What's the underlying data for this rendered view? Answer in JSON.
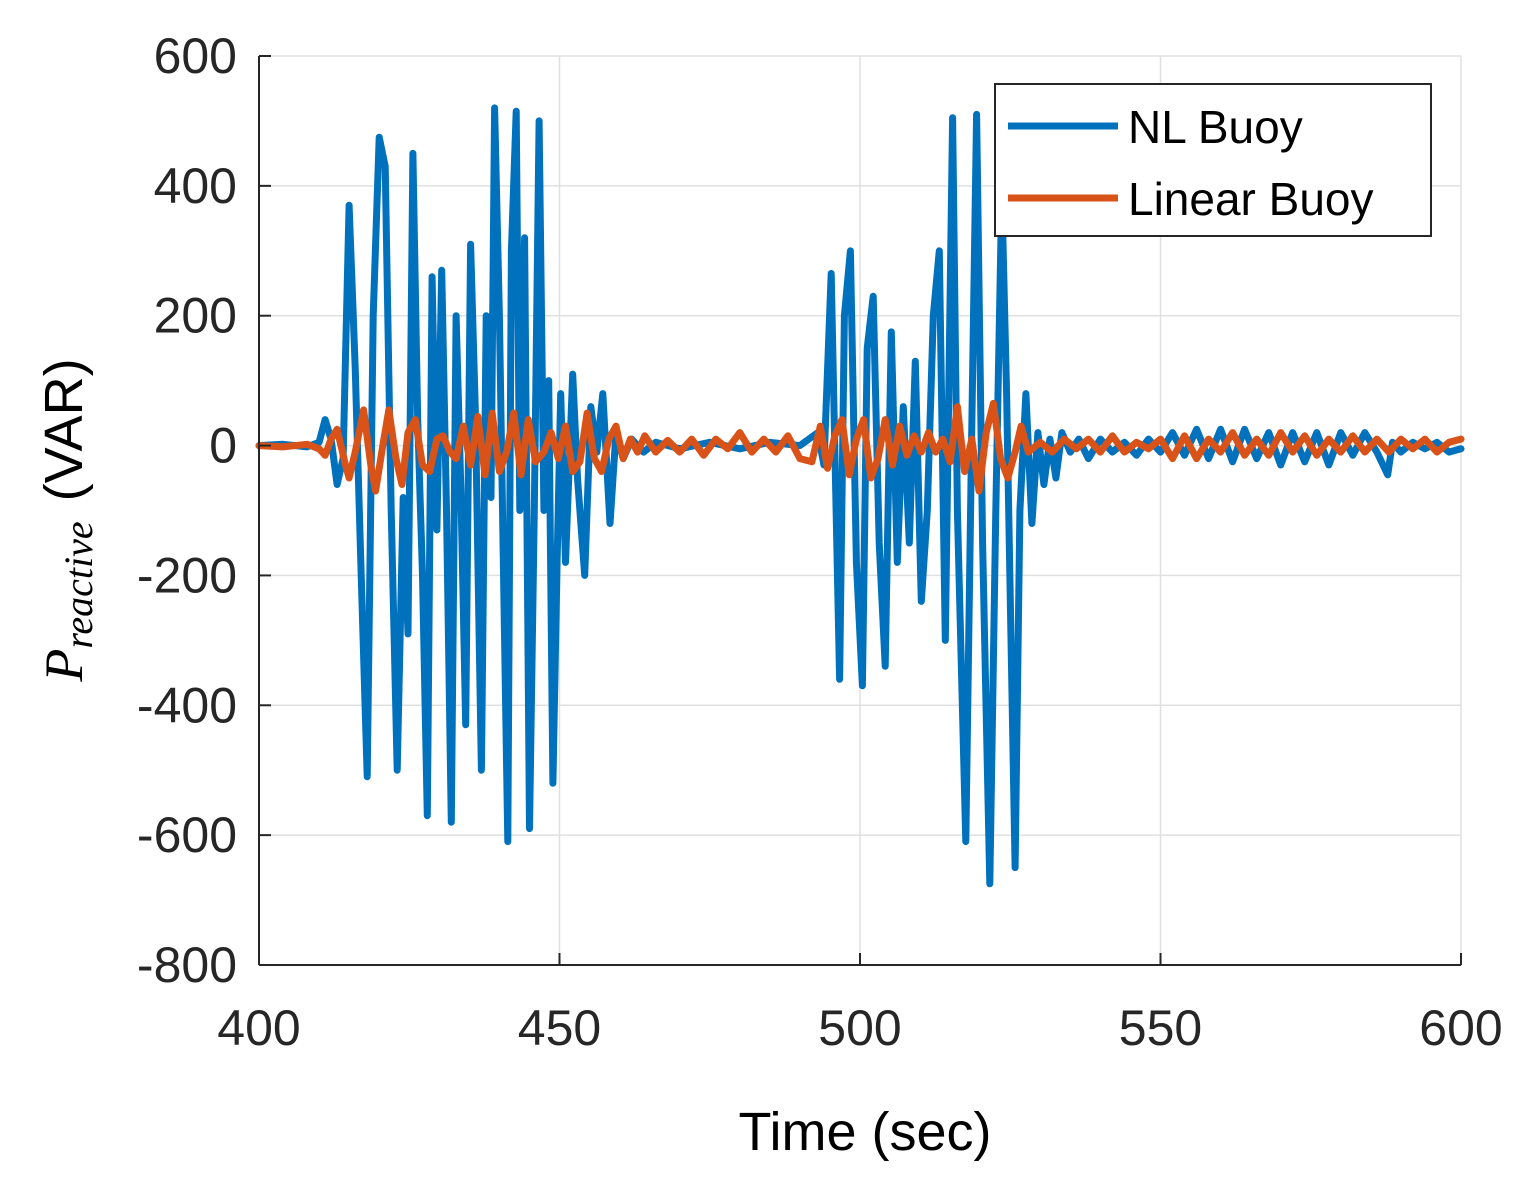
{
  "chart_data": {
    "type": "line",
    "xlabel": "Time (sec)",
    "ylabel": {
      "main": "P",
      "sub": "reactive",
      "unit": "(VAR)"
    },
    "xlim": [
      400,
      600
    ],
    "ylim": [
      -800,
      600
    ],
    "xticks": [
      400,
      450,
      500,
      550,
      600
    ],
    "yticks": [
      600,
      400,
      200,
      0,
      -200,
      -400,
      -600,
      -800
    ],
    "grid": true,
    "legend_position": "top-right",
    "series": [
      {
        "name": "NL Buoy",
        "color": "#0072BD",
        "points": [
          [
            400,
            0
          ],
          [
            404,
            2
          ],
          [
            408,
            -2
          ],
          [
            410,
            5
          ],
          [
            411,
            40
          ],
          [
            412,
            10
          ],
          [
            413,
            -60
          ],
          [
            414,
            -20
          ],
          [
            415,
            370
          ],
          [
            416,
            120
          ],
          [
            417,
            -200
          ],
          [
            418,
            -510
          ],
          [
            419,
            200
          ],
          [
            420,
            475
          ],
          [
            421,
            430
          ],
          [
            422,
            -100
          ],
          [
            423,
            -500
          ],
          [
            424,
            -80
          ],
          [
            424.8,
            -290
          ],
          [
            425.6,
            450
          ],
          [
            426.4,
            40
          ],
          [
            427.2,
            -200
          ],
          [
            428,
            -570
          ],
          [
            428.8,
            260
          ],
          [
            429.6,
            -130
          ],
          [
            430.4,
            270
          ],
          [
            431.2,
            -100
          ],
          [
            432,
            -580
          ],
          [
            432.8,
            200
          ],
          [
            433.6,
            -70
          ],
          [
            434.4,
            -430
          ],
          [
            435.2,
            310
          ],
          [
            436,
            50
          ],
          [
            437,
            -500
          ],
          [
            437.8,
            200
          ],
          [
            438.6,
            -80
          ],
          [
            439.2,
            520
          ],
          [
            440,
            200
          ],
          [
            441.4,
            -610
          ],
          [
            442,
            300
          ],
          [
            442.8,
            515
          ],
          [
            443.4,
            -100
          ],
          [
            444.2,
            320
          ],
          [
            445,
            -590
          ],
          [
            445.8,
            -100
          ],
          [
            446.6,
            500
          ],
          [
            447.4,
            -100
          ],
          [
            448.2,
            100
          ],
          [
            448.9,
            -520
          ],
          [
            449.6,
            -180
          ],
          [
            450.2,
            80
          ],
          [
            451,
            -180
          ],
          [
            452.2,
            110
          ],
          [
            453,
            -50
          ],
          [
            454.2,
            -200
          ],
          [
            455.2,
            60
          ],
          [
            456.2,
            -10
          ],
          [
            457.2,
            80
          ],
          [
            458.4,
            -120
          ],
          [
            459.4,
            20
          ],
          [
            460.6,
            -20
          ],
          [
            462,
            10
          ],
          [
            464,
            -10
          ],
          [
            466,
            5
          ],
          [
            470,
            -5
          ],
          [
            475,
            5
          ],
          [
            480,
            -5
          ],
          [
            485,
            5
          ],
          [
            490,
            0
          ],
          [
            493,
            20
          ],
          [
            494,
            -30
          ],
          [
            495.2,
            265
          ],
          [
            496.6,
            -360
          ],
          [
            497.4,
            200
          ],
          [
            498.4,
            300
          ],
          [
            499.4,
            -180
          ],
          [
            500.4,
            -370
          ],
          [
            501.2,
            150
          ],
          [
            502.2,
            230
          ],
          [
            503.2,
            -150
          ],
          [
            504.2,
            -340
          ],
          [
            505.2,
            175
          ],
          [
            506.2,
            -180
          ],
          [
            507.2,
            60
          ],
          [
            508.2,
            -150
          ],
          [
            509.2,
            130
          ],
          [
            510.2,
            -240
          ],
          [
            511.2,
            -100
          ],
          [
            512.2,
            200
          ],
          [
            513.2,
            300
          ],
          [
            514.2,
            -300
          ],
          [
            515.4,
            505
          ],
          [
            516.2,
            -100
          ],
          [
            517.6,
            -610
          ],
          [
            518.6,
            30
          ],
          [
            519.4,
            510
          ],
          [
            520.4,
            -150
          ],
          [
            521.6,
            -675
          ],
          [
            522.6,
            -100
          ],
          [
            523.6,
            390
          ],
          [
            524.4,
            80
          ],
          [
            525.8,
            -650
          ],
          [
            526.6,
            -100
          ],
          [
            527.6,
            80
          ],
          [
            528.6,
            -120
          ],
          [
            529.6,
            20
          ],
          [
            530.6,
            -60
          ],
          [
            531.6,
            10
          ],
          [
            532.6,
            -50
          ],
          [
            533.6,
            20
          ],
          [
            535,
            -10
          ],
          [
            536.4,
            10
          ],
          [
            538,
            -20
          ],
          [
            540,
            10
          ],
          [
            542,
            -10
          ],
          [
            544,
            5
          ],
          [
            546,
            -15
          ],
          [
            548,
            10
          ],
          [
            550,
            -10
          ],
          [
            552,
            20
          ],
          [
            554,
            -15
          ],
          [
            556,
            25
          ],
          [
            558,
            -20
          ],
          [
            560,
            25
          ],
          [
            562,
            -25
          ],
          [
            564,
            25
          ],
          [
            566,
            -20
          ],
          [
            568,
            20
          ],
          [
            570,
            -30
          ],
          [
            572,
            20
          ],
          [
            574,
            -25
          ],
          [
            576,
            20
          ],
          [
            578,
            -30
          ],
          [
            580,
            20
          ],
          [
            582,
            -15
          ],
          [
            584,
            20
          ],
          [
            586,
            -10
          ],
          [
            587.8,
            -45
          ],
          [
            588.6,
            5
          ],
          [
            590,
            -10
          ],
          [
            592,
            5
          ],
          [
            594,
            -5
          ],
          [
            596,
            5
          ],
          [
            598,
            -10
          ],
          [
            600,
            -5
          ]
        ]
      },
      {
        "name": "Linear Buoy",
        "color": "#D95319",
        "points": [
          [
            400,
            0
          ],
          [
            404,
            -2
          ],
          [
            408,
            2
          ],
          [
            410,
            -5
          ],
          [
            411,
            -15
          ],
          [
            412,
            10
          ],
          [
            413,
            25
          ],
          [
            414.4,
            -30
          ],
          [
            415,
            -50
          ],
          [
            416,
            -10
          ],
          [
            417.4,
            55
          ],
          [
            418.6,
            -30
          ],
          [
            419.4,
            -70
          ],
          [
            420.6,
            0
          ],
          [
            421.6,
            55
          ],
          [
            422.8,
            -20
          ],
          [
            423.8,
            -60
          ],
          [
            424.8,
            20
          ],
          [
            426,
            40
          ],
          [
            427.2,
            -30
          ],
          [
            428.4,
            -40
          ],
          [
            429.6,
            10
          ],
          [
            430.6,
            15
          ],
          [
            431.8,
            -10
          ],
          [
            432.8,
            -20
          ],
          [
            434,
            30
          ],
          [
            435.2,
            -30
          ],
          [
            436.4,
            45
          ],
          [
            437.6,
            -45
          ],
          [
            438.8,
            50
          ],
          [
            440,
            -40
          ],
          [
            441.2,
            -10
          ],
          [
            442.4,
            50
          ],
          [
            443.6,
            -45
          ],
          [
            444.8,
            40
          ],
          [
            446,
            -25
          ],
          [
            447.4,
            -10
          ],
          [
            448.6,
            20
          ],
          [
            449.8,
            -20
          ],
          [
            451,
            30
          ],
          [
            452.2,
            -40
          ],
          [
            453.4,
            -25
          ],
          [
            454.6,
            50
          ],
          [
            455.8,
            -20
          ],
          [
            457,
            -40
          ],
          [
            458.2,
            10
          ],
          [
            459.4,
            30
          ],
          [
            460.6,
            -20
          ],
          [
            461.8,
            10
          ],
          [
            463,
            -10
          ],
          [
            464.2,
            15
          ],
          [
            466,
            -10
          ],
          [
            468,
            8
          ],
          [
            470,
            -10
          ],
          [
            472,
            10
          ],
          [
            474,
            -15
          ],
          [
            476,
            10
          ],
          [
            478,
            -5
          ],
          [
            480,
            20
          ],
          [
            482,
            -10
          ],
          [
            484,
            10
          ],
          [
            486,
            -10
          ],
          [
            488,
            15
          ],
          [
            490,
            -20
          ],
          [
            492,
            -25
          ],
          [
            493.4,
            30
          ],
          [
            494.6,
            -35
          ],
          [
            495.8,
            15
          ],
          [
            497,
            40
          ],
          [
            498.2,
            -45
          ],
          [
            499.4,
            10
          ],
          [
            500.6,
            40
          ],
          [
            501.8,
            -50
          ],
          [
            503,
            -20
          ],
          [
            504.2,
            40
          ],
          [
            505.4,
            -30
          ],
          [
            506.6,
            30
          ],
          [
            507.8,
            -15
          ],
          [
            509,
            15
          ],
          [
            510.2,
            -10
          ],
          [
            511.4,
            20
          ],
          [
            512.6,
            -10
          ],
          [
            513.8,
            10
          ],
          [
            515,
            -25
          ],
          [
            516.2,
            60
          ],
          [
            517.4,
            -40
          ],
          [
            518.6,
            10
          ],
          [
            519.8,
            -70
          ],
          [
            521,
            20
          ],
          [
            522.2,
            65
          ],
          [
            523.4,
            -20
          ],
          [
            524.6,
            -50
          ],
          [
            525.8,
            -10
          ],
          [
            526.8,
            30
          ],
          [
            528,
            -10
          ],
          [
            530,
            5
          ],
          [
            532,
            -10
          ],
          [
            534,
            10
          ],
          [
            536,
            -5
          ],
          [
            538,
            10
          ],
          [
            540,
            -10
          ],
          [
            542,
            15
          ],
          [
            544,
            -10
          ],
          [
            546,
            5
          ],
          [
            548,
            -5
          ],
          [
            550,
            10
          ],
          [
            552,
            -20
          ],
          [
            554,
            15
          ],
          [
            556,
            -20
          ],
          [
            558,
            10
          ],
          [
            560,
            -10
          ],
          [
            562,
            20
          ],
          [
            564,
            -15
          ],
          [
            566,
            10
          ],
          [
            568,
            -15
          ],
          [
            570,
            20
          ],
          [
            572,
            -10
          ],
          [
            574,
            15
          ],
          [
            576,
            -15
          ],
          [
            578,
            10
          ],
          [
            580,
            -10
          ],
          [
            582,
            15
          ],
          [
            584,
            -10
          ],
          [
            586,
            10
          ],
          [
            588,
            -10
          ],
          [
            590,
            10
          ],
          [
            592,
            -5
          ],
          [
            594,
            10
          ],
          [
            596,
            -10
          ],
          [
            598,
            5
          ],
          [
            600,
            10
          ]
        ]
      }
    ]
  }
}
